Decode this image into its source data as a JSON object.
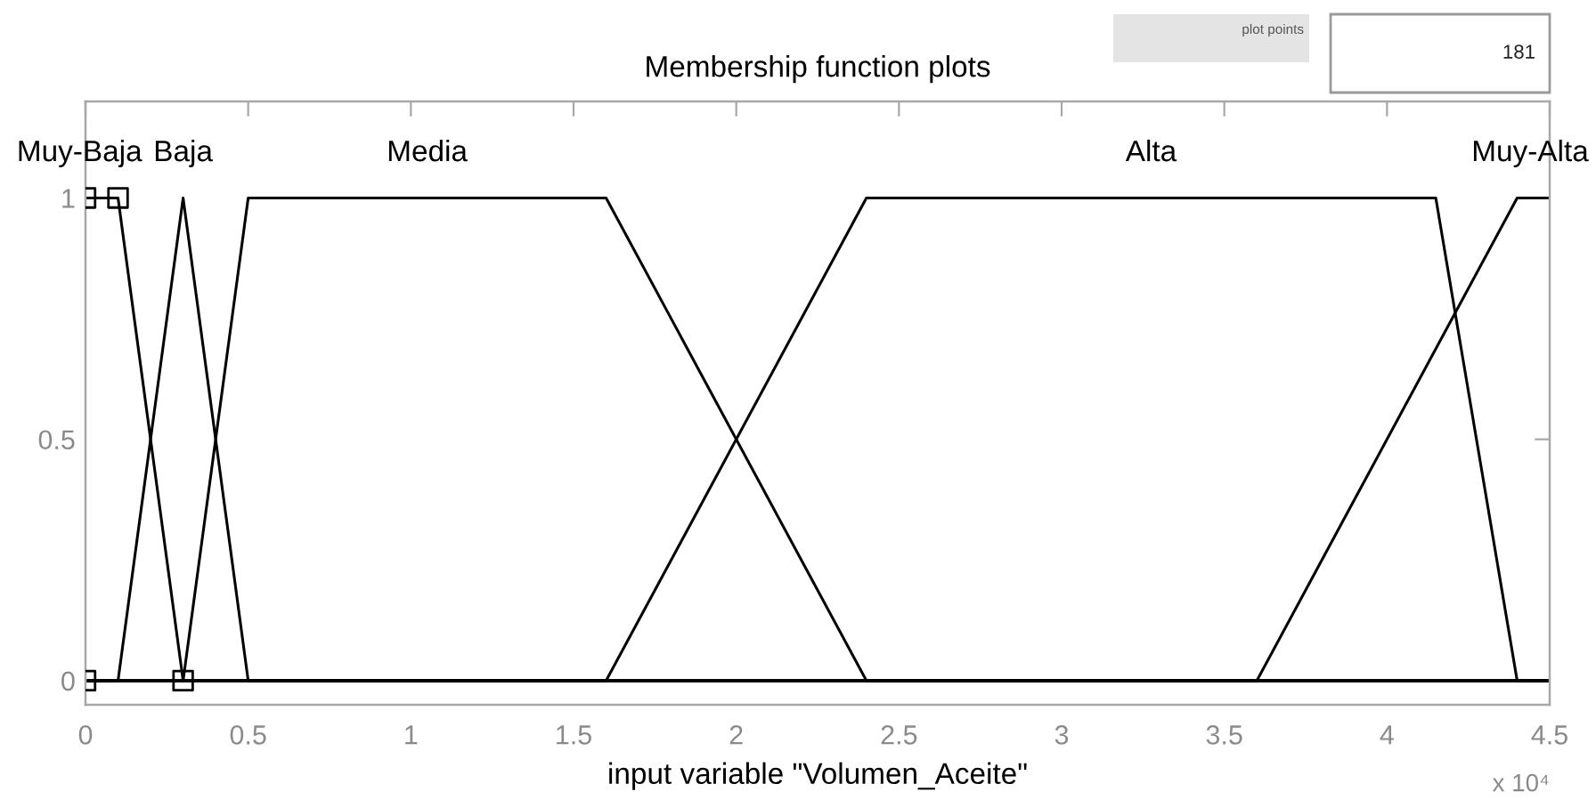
{
  "chart_data": {
    "type": "line",
    "title": "Membership function plots",
    "xlabel": "input variable \"Volumen_Aceite\"",
    "annotations": [
      "plot points",
      "181",
      "x 10⁴"
    ],
    "series": [
      {
        "name": "Muy-Baja",
        "color": "#000000",
        "x": [
          0,
          0.1,
          0.3,
          4.5
        ],
        "values": [
          1,
          1,
          0,
          0
        ]
      },
      {
        "name": "Baja",
        "color": "#000000",
        "x": [
          0,
          0.1,
          0.3,
          0.5,
          4.5
        ],
        "values": [
          0,
          0,
          1,
          0,
          0
        ]
      },
      {
        "name": "Media",
        "color": "#000000",
        "x": [
          0,
          0.3,
          0.5,
          1.6,
          2.4,
          4.5
        ],
        "values": [
          0,
          0,
          1,
          1,
          0,
          0
        ]
      },
      {
        "name": "Alta",
        "color": "#000000",
        "x": [
          0,
          1.6,
          2.4,
          4.15,
          4.4,
          4.5
        ],
        "values": [
          0,
          0,
          1,
          1,
          0,
          0
        ]
      },
      {
        "name": "Muy-Alta",
        "color": "#000000",
        "x": [
          0,
          3.6,
          4.4,
          4.5
        ],
        "values": [
          0,
          0,
          1,
          1
        ]
      },
      {
        "type": "scatter",
        "marker": "square",
        "color": "#000000",
        "x": [
          0,
          0,
          0.1,
          0.3
        ],
        "values": [
          0,
          1,
          1,
          0
        ]
      }
    ],
    "xlim": [
      0,
      4.5
    ],
    "ylim": [
      -0.05,
      1.2
    ],
    "xticks": [
      0,
      0.5,
      1,
      1.5,
      2,
      2.5,
      3,
      3.5,
      4,
      4.5
    ],
    "yticks": [
      0,
      0.5,
      1
    ]
  }
}
